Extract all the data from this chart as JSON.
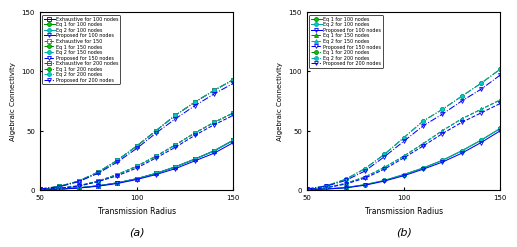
{
  "x": [
    50,
    60,
    70,
    80,
    90,
    100,
    110,
    120,
    130,
    140,
    150
  ],
  "subplot_a": {
    "title": "(a)",
    "ylabel": "Algebraic Connectivity",
    "xlabel": "Transmission Radius",
    "ylim": [
      0,
      150
    ],
    "xlim": [
      50,
      150
    ],
    "series": [
      {
        "label": "Exhaustive for 100 nodes",
        "color": "#0000CD",
        "marker": "s",
        "linestyle": "-",
        "mfc": "none",
        "values": [
          0.3,
          0.8,
          1.8,
          3.5,
          6.0,
          9.5,
          14.0,
          19.5,
          26.0,
          33.0,
          42.0
        ]
      },
      {
        "label": "Eq 1 for 100 nodes",
        "color": "#008800",
        "marker": "o",
        "linestyle": "-",
        "mfc": "#00CC00",
        "values": [
          0.3,
          0.8,
          1.8,
          3.5,
          6.0,
          9.5,
          14.0,
          19.5,
          26.0,
          33.0,
          42.0
        ]
      },
      {
        "label": "Eq 2 for 100 nodes",
        "color": "#00AAAA",
        "marker": "o",
        "linestyle": "-",
        "mfc": "#00CCCC",
        "values": [
          0.3,
          0.8,
          1.8,
          3.5,
          6.0,
          9.5,
          14.0,
          19.5,
          26.0,
          33.0,
          42.0
        ]
      },
      {
        "label": "Proposed for 100 nodes",
        "color": "#0000FF",
        "marker": "v",
        "linestyle": "-",
        "mfc": "none",
        "values": [
          0.3,
          0.7,
          1.6,
          3.2,
          5.5,
          8.8,
          13.0,
          18.0,
          24.5,
          31.0,
          40.0
        ]
      },
      {
        "label": "Exhaustive for 150",
        "color": "#666666",
        "marker": "s",
        "linestyle": "--",
        "mfc": "none",
        "values": [
          0.5,
          1.5,
          3.5,
          7.5,
          13.0,
          20.0,
          28.5,
          38.0,
          48.0,
          57.0,
          65.0
        ]
      },
      {
        "label": "Eq 1 for 150 nodes",
        "color": "#008800",
        "marker": "o",
        "linestyle": "--",
        "mfc": "#00CC00",
        "values": [
          0.5,
          1.5,
          3.5,
          7.5,
          13.0,
          20.0,
          28.5,
          38.0,
          48.0,
          57.0,
          65.0
        ]
      },
      {
        "label": "Eq 2 for 150 nodes",
        "color": "#00AAAA",
        "marker": "o",
        "linestyle": "--",
        "mfc": "#00CCCC",
        "values": [
          0.5,
          1.5,
          3.5,
          7.5,
          13.0,
          20.0,
          28.5,
          38.0,
          48.0,
          57.0,
          65.0
        ]
      },
      {
        "label": "Proposed for 150 nodes",
        "color": "#0000FF",
        "marker": "v",
        "linestyle": "--",
        "mfc": "none",
        "values": [
          0.5,
          1.4,
          3.2,
          7.0,
          12.0,
          18.5,
          27.0,
          36.0,
          46.0,
          55.0,
          63.0
        ]
      },
      {
        "label": "Exhaustive for 200 nodes",
        "color": "#444444",
        "marker": "s",
        "linestyle": "-.",
        "mfc": "none",
        "values": [
          0.8,
          3.0,
          7.5,
          15.0,
          25.0,
          37.0,
          50.0,
          63.0,
          74.0,
          84.0,
          93.0
        ]
      },
      {
        "label": "Eq 1 for 200 nodes",
        "color": "#008800",
        "marker": "o",
        "linestyle": "-.",
        "mfc": "#00CC00",
        "values": [
          0.8,
          3.0,
          7.5,
          15.0,
          25.0,
          37.0,
          50.0,
          63.0,
          74.0,
          84.0,
          93.0
        ]
      },
      {
        "label": "Eq 2 for 200 nodes",
        "color": "#00AAAA",
        "marker": "o",
        "linestyle": "-.",
        "mfc": "#00CCCC",
        "values": [
          0.8,
          3.0,
          7.5,
          15.0,
          25.0,
          37.0,
          50.0,
          63.0,
          74.0,
          84.0,
          93.0
        ]
      },
      {
        "label": "Proposed for 200 nodes",
        "color": "#0000FF",
        "marker": "v",
        "linestyle": "-.",
        "mfc": "none",
        "values": [
          0.7,
          2.7,
          7.0,
          14.0,
          23.5,
          35.0,
          48.0,
          60.0,
          71.0,
          81.0,
          90.0
        ]
      }
    ]
  },
  "subplot_b": {
    "title": "(b)",
    "ylabel": "Algebraic Connectivity",
    "xlabel": "Transmission Radius",
    "ylim": [
      0,
      150
    ],
    "xlim": [
      50,
      150
    ],
    "series": [
      {
        "label": "Eq 1 for 100 nodes",
        "color": "#008800",
        "marker": "o",
        "linestyle": "-",
        "mfc": "#00CC00",
        "values": [
          0.3,
          0.9,
          2.0,
          4.5,
          8.0,
          13.0,
          18.5,
          25.0,
          33.0,
          42.0,
          52.0
        ]
      },
      {
        "label": "Eq 2 for 100 nodes",
        "color": "#00AAAA",
        "marker": "o",
        "linestyle": "-",
        "mfc": "#00CCCC",
        "values": [
          0.3,
          0.9,
          2.0,
          4.5,
          8.0,
          13.0,
          18.5,
          25.0,
          33.0,
          42.0,
          52.0
        ]
      },
      {
        "label": "Proposed for 100 nodes",
        "color": "#0000FF",
        "marker": "v",
        "linestyle": "-",
        "mfc": "none",
        "values": [
          0.3,
          0.8,
          1.8,
          4.0,
          7.5,
          12.0,
          17.5,
          23.5,
          31.0,
          40.0,
          50.0
        ]
      },
      {
        "label": "Eq 1 for 150 nodes",
        "color": "#008800",
        "marker": "^",
        "linestyle": "--",
        "mfc": "#00CC00",
        "values": [
          0.5,
          2.0,
          5.5,
          11.0,
          19.0,
          28.5,
          39.0,
          50.0,
          60.0,
          68.0,
          76.0
        ]
      },
      {
        "label": "Eq 2 for 150 nodes",
        "color": "#00AAAA",
        "marker": "^",
        "linestyle": "--",
        "mfc": "#00CCCC",
        "values": [
          0.5,
          2.0,
          5.5,
          11.0,
          19.0,
          28.5,
          39.0,
          50.0,
          60.0,
          68.0,
          76.0
        ]
      },
      {
        "label": "Proposed for 150 nodes",
        "color": "#0000FF",
        "marker": "v",
        "linestyle": "--",
        "mfc": "none",
        "values": [
          0.5,
          1.8,
          5.0,
          10.0,
          17.5,
          27.0,
          37.0,
          47.5,
          57.0,
          65.0,
          73.0
        ]
      },
      {
        "label": "Eq 1 for 200 nodes",
        "color": "#008800",
        "marker": "o",
        "linestyle": "-.",
        "mfc": "#00CC00",
        "values": [
          0.8,
          3.5,
          9.0,
          18.0,
          30.0,
          44.0,
          58.0,
          68.0,
          79.0,
          90.0,
          102.0
        ]
      },
      {
        "label": "Eq 2 for 200 nodes",
        "color": "#00AAAA",
        "marker": "o",
        "linestyle": "-.",
        "mfc": "#00CCCC",
        "values": [
          0.8,
          3.5,
          9.0,
          18.0,
          30.0,
          44.0,
          58.0,
          68.0,
          79.0,
          90.0,
          102.0
        ]
      },
      {
        "label": "Proposed for 200 nodes",
        "color": "#0000FF",
        "marker": "v",
        "linestyle": "-.",
        "mfc": "none",
        "values": [
          0.7,
          3.2,
          8.0,
          16.0,
          28.0,
          41.0,
          54.0,
          64.0,
          75.0,
          85.0,
          97.0
        ]
      }
    ]
  }
}
